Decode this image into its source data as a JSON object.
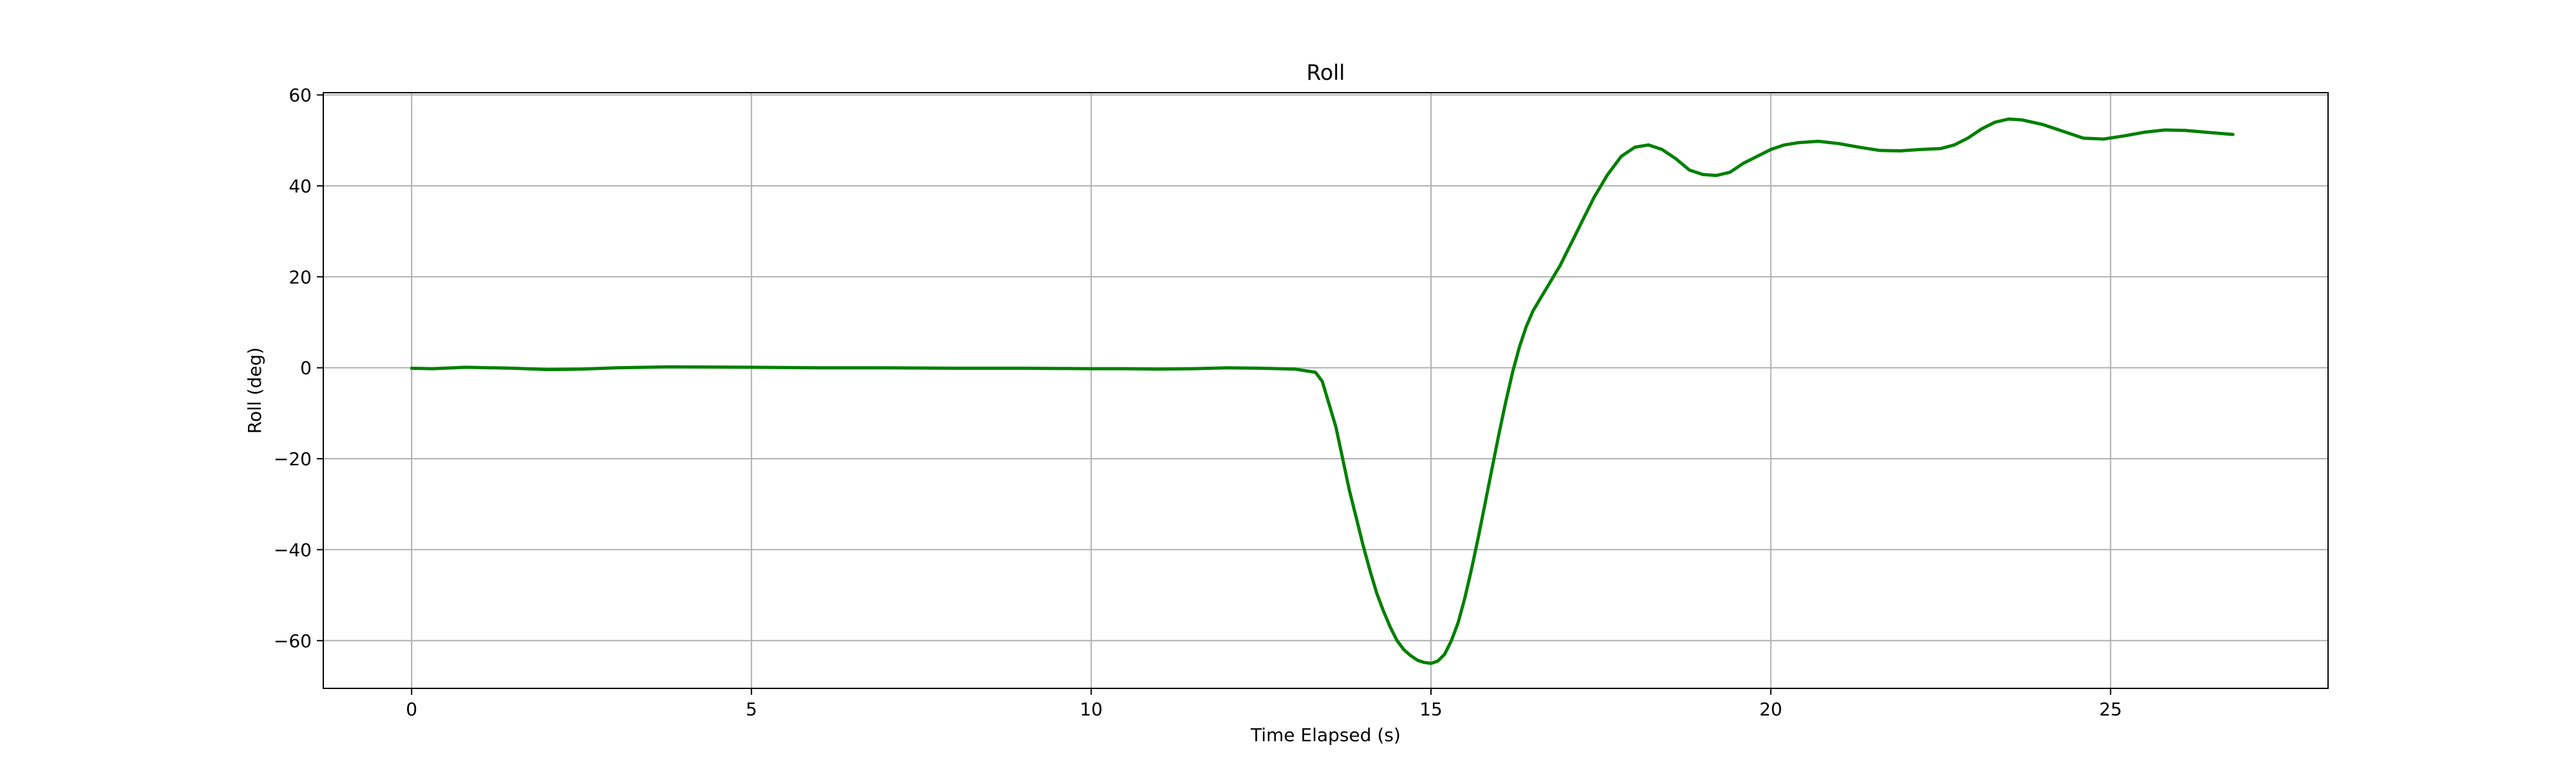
{
  "chart_data": {
    "type": "line",
    "title": "Roll",
    "xlabel": "Time Elapsed (s)",
    "ylabel": "Roll (deg)",
    "xlim": [
      -1.3,
      28.2
    ],
    "ylim": [
      -70.5,
      60.5
    ],
    "xticks": [
      0,
      5,
      10,
      15,
      20,
      25
    ],
    "yticks": [
      -60,
      -40,
      -20,
      0,
      20,
      40,
      60
    ],
    "grid": true,
    "line_color": "#008000",
    "grid_color": "#b0b0b0",
    "series": [
      {
        "x": [
          0,
          0.3,
          0.8,
          1.5,
          2.0,
          2.5,
          3.0,
          3.8,
          5,
          6,
          7,
          8,
          9,
          10,
          10.5,
          11,
          11.5,
          12,
          12.5,
          13.0,
          13.3,
          13.4,
          13.5,
          13.6,
          13.7,
          13.8,
          13.9,
          14.0,
          14.1,
          14.2,
          14.3,
          14.4,
          14.5,
          14.6,
          14.7,
          14.8,
          14.9,
          15.0,
          15.1,
          15.2,
          15.3,
          15.4,
          15.5,
          15.6,
          15.7,
          15.8,
          15.9,
          16.0,
          16.1,
          16.2,
          16.3,
          16.4,
          16.5,
          16.6,
          16.7,
          16.8,
          16.9,
          17.0,
          17.1,
          17.2,
          17.3,
          17.4,
          17.5,
          17.6,
          17.7,
          17.8,
          17.9,
          18.0,
          18.2,
          18.4,
          18.6,
          18.8,
          19.0,
          19.2,
          19.4,
          19.6,
          19.8,
          20.0,
          20.2,
          20.4,
          20.7,
          21.0,
          21.3,
          21.6,
          21.9,
          22.2,
          22.5,
          22.7,
          22.9,
          23.1,
          23.3,
          23.5,
          23.7,
          24.0,
          24.3,
          24.6,
          24.9,
          25.2,
          25.5,
          25.8,
          26.1,
          26.4,
          26.8
        ],
        "y": [
          -0.1,
          -0.2,
          0.1,
          -0.1,
          -0.4,
          -0.3,
          0.0,
          0.2,
          0.1,
          0.0,
          0.0,
          -0.1,
          -0.1,
          -0.2,
          -0.2,
          -0.3,
          -0.2,
          0.0,
          -0.1,
          -0.3,
          -1.0,
          -3.0,
          -8.0,
          -13.0,
          -20.0,
          -27.0,
          -33.0,
          -39.0,
          -44.5,
          -49.5,
          -53.5,
          -57.0,
          -60.0,
          -62.0,
          -63.3,
          -64.3,
          -64.8,
          -65.0,
          -64.5,
          -63.0,
          -60.0,
          -56.0,
          -50.5,
          -44.0,
          -37.0,
          -29.5,
          -22.0,
          -14.5,
          -7.5,
          -1.0,
          4.5,
          9.0,
          12.5,
          15.0,
          17.5,
          20.0,
          22.5,
          25.5,
          28.5,
          31.5,
          34.5,
          37.5,
          40.0,
          42.5,
          44.5,
          46.5,
          47.5,
          48.5,
          49.0,
          48.0,
          46.0,
          43.5,
          42.5,
          42.3,
          43.0,
          45.0,
          46.5,
          48.0,
          49.0,
          49.5,
          49.8,
          49.3,
          48.5,
          47.8,
          47.7,
          48.0,
          48.2,
          49.0,
          50.5,
          52.5,
          54.0,
          54.7,
          54.5,
          53.5,
          52.0,
          50.5,
          50.3,
          51.0,
          51.8,
          52.3,
          52.2,
          51.8,
          51.3
        ]
      }
    ]
  }
}
